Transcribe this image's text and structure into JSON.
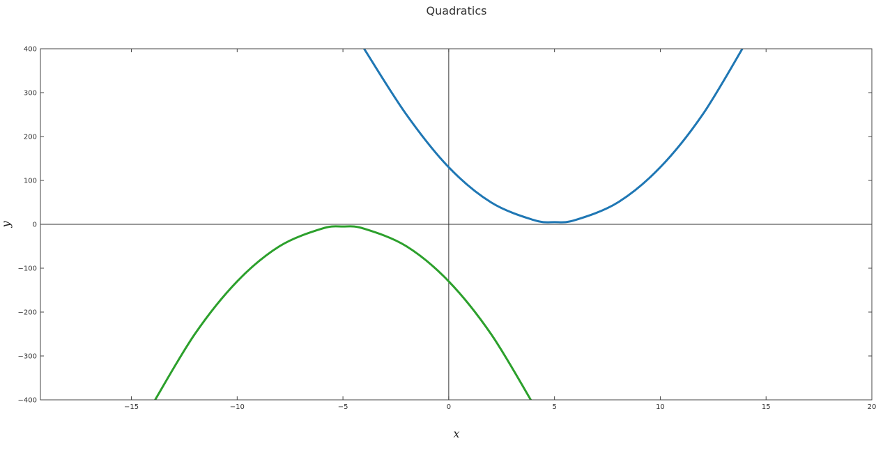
{
  "chart_data": {
    "type": "line",
    "title": "Quadratics",
    "xlabel": "x",
    "ylabel": "y",
    "xlim": [
      -19.3,
      20
    ],
    "ylim": [
      -400,
      400
    ],
    "xticks": [
      -15,
      -10,
      -5,
      0,
      5,
      10,
      15,
      20
    ],
    "yticks": [
      -400,
      -300,
      -200,
      -100,
      0,
      100,
      200,
      300,
      400
    ],
    "xtick_labels": [
      "−15",
      "−10",
      "−5",
      "0",
      "5",
      "10",
      "15",
      "20"
    ],
    "ytick_labels": [
      "−400",
      "−300",
      "−200",
      "−100",
      "0",
      "100",
      "200",
      "300",
      "400"
    ],
    "grid": false,
    "zero_lines": true,
    "legend": "none",
    "series": [
      {
        "color": "#1f77b4",
        "x": [
          -4,
          -2,
          0,
          2,
          4,
          5,
          6,
          8,
          10,
          12,
          14
        ],
        "y": [
          400,
          250,
          130,
          50,
          10,
          5,
          10,
          50,
          130,
          250,
          410
        ]
      },
      {
        "color": "#2ca02c",
        "x": [
          -14,
          -12,
          -10,
          -8,
          -6,
          -5,
          -4,
          -2,
          0,
          2,
          4
        ],
        "y": [
          -410,
          -250,
          -130,
          -50,
          -10,
          -5,
          -10,
          -50,
          -130,
          -250,
          -410
        ]
      }
    ]
  }
}
